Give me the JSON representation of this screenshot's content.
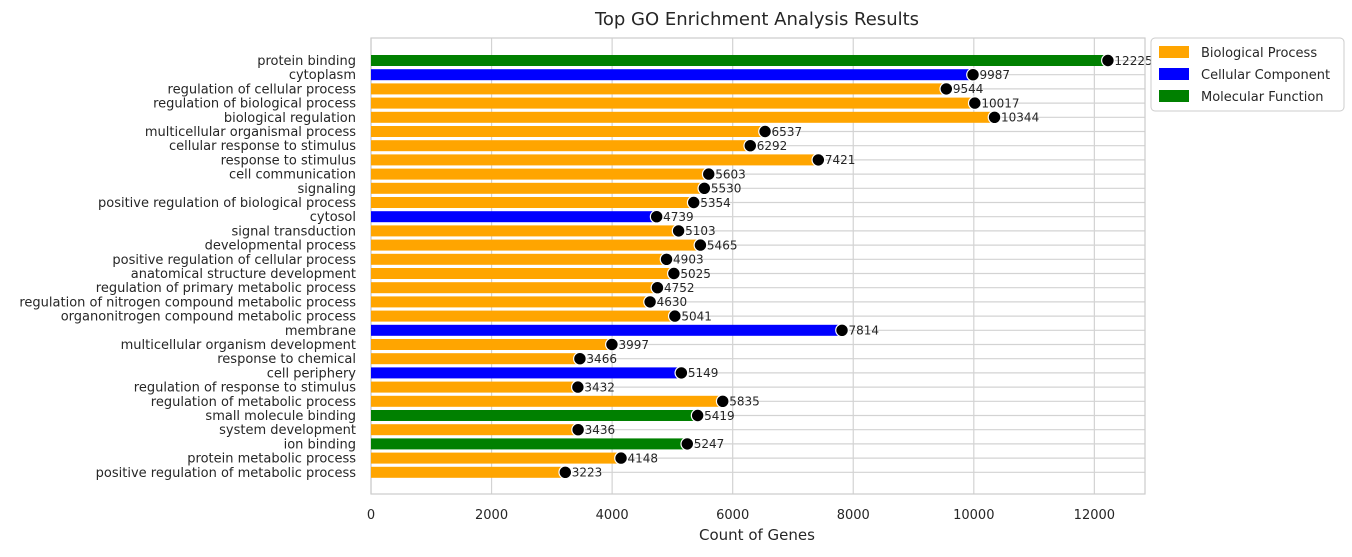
{
  "colors": {
    "Biological Process": "#FFA500",
    "Cellular Component": "#0000FF",
    "Molecular Function": "#008000",
    "marker": "#000000",
    "grid": "#d3d3d3",
    "axes_edge": "#cccccc"
  },
  "chart_data": {
    "type": "bar",
    "orientation": "horizontal",
    "title": "Top GO Enrichment Analysis Results",
    "xlabel": "Count of Genes",
    "ylabel": "",
    "xlim": [
      0,
      12840
    ],
    "xticks": [
      0,
      2000,
      4000,
      6000,
      8000,
      10000,
      12000
    ],
    "grid": true,
    "legend_position": "outside-top-right",
    "legend": [
      "Biological Process",
      "Cellular Component",
      "Molecular Function"
    ],
    "marker": "black filled circle at bar end",
    "categories": [
      "protein binding",
      "cytoplasm",
      "regulation of cellular process",
      "regulation of biological process",
      "biological regulation",
      "multicellular organismal process",
      "cellular response to stimulus",
      "response to stimulus",
      "cell communication",
      "signaling",
      "positive regulation of biological process",
      "cytosol",
      "signal transduction",
      "developmental process",
      "positive regulation of cellular process",
      "anatomical structure development",
      "regulation of primary metabolic process",
      "regulation of nitrogen compound metabolic process",
      "organonitrogen compound metabolic process",
      "membrane",
      "multicellular organism development",
      "response to chemical",
      "cell periphery",
      "regulation of response to stimulus",
      "regulation of metabolic process",
      "small molecule binding",
      "system development",
      "ion binding",
      "protein metabolic process",
      "positive regulation of metabolic process"
    ],
    "values": [
      12225,
      9987,
      9544,
      10017,
      10344,
      6537,
      6292,
      7421,
      5603,
      5530,
      5354,
      4739,
      5103,
      5465,
      4903,
      5025,
      4752,
      4630,
      5041,
      7814,
      3997,
      3466,
      5149,
      3432,
      5835,
      5419,
      3436,
      5247,
      4148,
      3223
    ],
    "groups": [
      "Molecular Function",
      "Cellular Component",
      "Biological Process",
      "Biological Process",
      "Biological Process",
      "Biological Process",
      "Biological Process",
      "Biological Process",
      "Biological Process",
      "Biological Process",
      "Biological Process",
      "Cellular Component",
      "Biological Process",
      "Biological Process",
      "Biological Process",
      "Biological Process",
      "Biological Process",
      "Biological Process",
      "Biological Process",
      "Cellular Component",
      "Biological Process",
      "Biological Process",
      "Cellular Component",
      "Biological Process",
      "Biological Process",
      "Molecular Function",
      "Biological Process",
      "Molecular Function",
      "Biological Process",
      "Biological Process"
    ]
  }
}
